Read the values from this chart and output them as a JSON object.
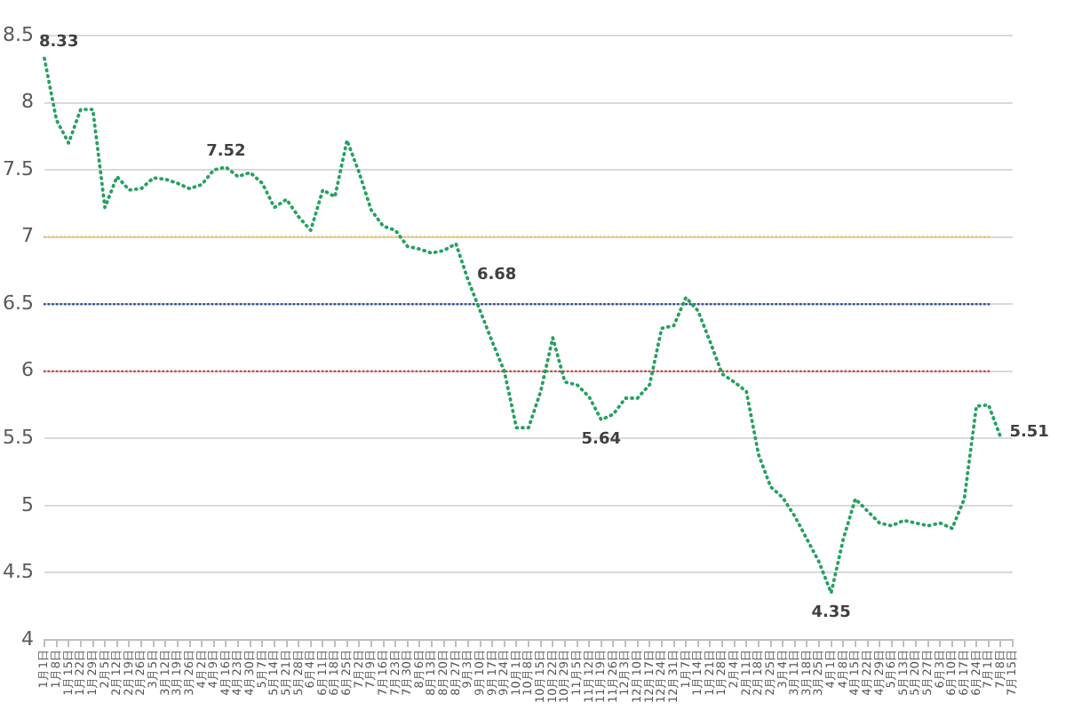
{
  "chart_data": {
    "type": "line",
    "categories": [
      "1月1日",
      "1月8日",
      "1月15日",
      "1月22日",
      "1月29日",
      "2月5日",
      "2月12日",
      "2月19日",
      "2月26日",
      "3月5日",
      "3月12日",
      "3月19日",
      "3月26日",
      "4月2日",
      "4月9日",
      "4月16日",
      "4月23日",
      "4月30日",
      "5月7日",
      "5月14日",
      "5月21日",
      "5月28日",
      "6月4日",
      "6月11日",
      "6月18日",
      "6月25日",
      "7月2日",
      "7月9日",
      "7月16日",
      "7月23日",
      "7月30日",
      "8月6日",
      "8月13日",
      "8月20日",
      "8月27日",
      "9月3日",
      "9月10日",
      "9月17日",
      "9月24日",
      "10月1日",
      "10月8日",
      "10月15日",
      "10月22日",
      "10月29日",
      "11月5日",
      "11月12日",
      "11月19日",
      "11月26日",
      "12月3日",
      "12月10日",
      "12月17日",
      "12月24日",
      "12月31日",
      "1月7日",
      "1月14日",
      "1月21日",
      "1月28日",
      "2月4日",
      "2月11日",
      "2月18日",
      "2月25日",
      "3月4日",
      "3月11日",
      "3月18日",
      "3月25日",
      "4月1日",
      "4月8日",
      "4月15日",
      "4月22日",
      "4月29日",
      "5月6日",
      "5月13日",
      "5月20日",
      "5月27日",
      "6月3日",
      "6月10日",
      "6月17日",
      "6月24日",
      "7月1日",
      "7月8日",
      "7月15日"
    ],
    "values": [
      8.33,
      7.87,
      7.7,
      7.95,
      7.95,
      7.22,
      7.45,
      7.35,
      7.36,
      7.44,
      7.43,
      7.4,
      7.36,
      7.39,
      7.5,
      7.52,
      7.45,
      7.48,
      7.4,
      7.22,
      7.28,
      7.15,
      7.05,
      7.35,
      7.3,
      7.72,
      7.48,
      7.2,
      7.08,
      7.05,
      6.93,
      6.91,
      6.88,
      6.9,
      6.95,
      6.68,
      6.45,
      6.22,
      6.0,
      5.58,
      5.58,
      5.85,
      6.25,
      5.92,
      5.9,
      5.81,
      5.64,
      5.68,
      5.8,
      5.8,
      5.9,
      6.32,
      6.34,
      6.55,
      6.45,
      6.22,
      5.98,
      5.92,
      5.85,
      5.38,
      5.14,
      5.06,
      4.92,
      4.75,
      4.58,
      4.35,
      4.75,
      5.05,
      4.96,
      4.87,
      4.85,
      4.89,
      4.87,
      4.85,
      4.87,
      4.83,
      5.05,
      5.74,
      5.75,
      5.51,
      null
    ],
    "value_labels": [
      "8.33",
      null,
      null,
      null,
      null,
      null,
      null,
      null,
      null,
      null,
      null,
      null,
      null,
      null,
      null,
      "7.52",
      null,
      null,
      null,
      null,
      null,
      null,
      null,
      null,
      null,
      null,
      null,
      null,
      null,
      null,
      null,
      null,
      null,
      null,
      null,
      "6.68",
      null,
      null,
      null,
      null,
      null,
      null,
      null,
      null,
      null,
      null,
      "5.64",
      null,
      null,
      null,
      null,
      null,
      null,
      null,
      null,
      null,
      null,
      null,
      null,
      null,
      null,
      null,
      null,
      null,
      null,
      "4.35",
      null,
      null,
      null,
      null,
      null,
      null,
      null,
      null,
      null,
      null,
      null,
      null,
      null,
      "5.51",
      null
    ],
    "color": "#27a060",
    "line_style": "dotted",
    "ylim": [
      4,
      8.5
    ],
    "yticks": [
      4,
      4.5,
      5,
      5.5,
      6,
      6.5,
      7,
      7.5,
      8,
      8.5
    ],
    "grid": "y",
    "ref_lines": [
      {
        "axis": "y",
        "value": 7,
        "color": "#f2c46b",
        "line_style": "dotted"
      },
      {
        "axis": "y",
        "value": 6.5,
        "color": "#2f4fa0",
        "line_style": "dotted"
      },
      {
        "axis": "y",
        "value": 6,
        "color": "#c0504d",
        "line_style": "dotted"
      }
    ]
  }
}
